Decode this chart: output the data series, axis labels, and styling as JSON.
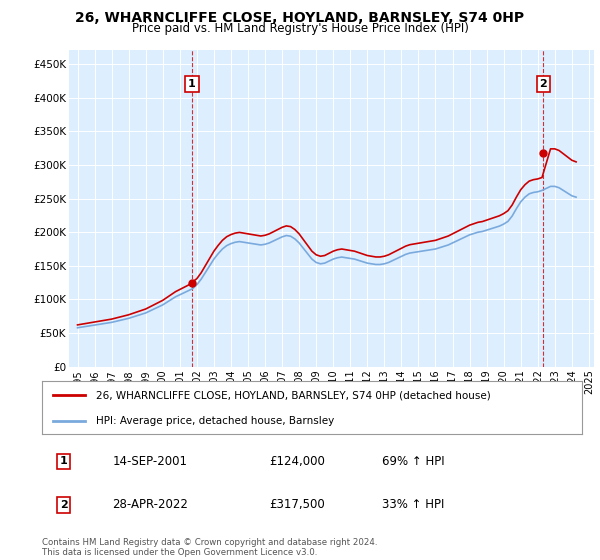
{
  "title": "26, WHARNCLIFFE CLOSE, HOYLAND, BARNSLEY, S74 0HP",
  "subtitle": "Price paid vs. HM Land Registry's House Price Index (HPI)",
  "legend_line1": "26, WHARNCLIFFE CLOSE, HOYLAND, BARNSLEY, S74 0HP (detached house)",
  "legend_line2": "HPI: Average price, detached house, Barnsley",
  "annotation1_date": "14-SEP-2001",
  "annotation1_price": "£124,000",
  "annotation1_hpi": "69% ↑ HPI",
  "annotation2_date": "28-APR-2022",
  "annotation2_price": "£317,500",
  "annotation2_hpi": "33% ↑ HPI",
  "footnote": "Contains HM Land Registry data © Crown copyright and database right 2024.\nThis data is licensed under the Open Government Licence v3.0.",
  "hpi_color": "#7aaadd",
  "price_color": "#cc0000",
  "plot_bg_color": "#ddeeff",
  "ylim": [
    0,
    470000
  ],
  "yticks": [
    0,
    50000,
    100000,
    150000,
    200000,
    250000,
    300000,
    350000,
    400000,
    450000
  ],
  "ytick_labels": [
    "£0",
    "£50K",
    "£100K",
    "£150K",
    "£200K",
    "£250K",
    "£300K",
    "£350K",
    "£400K",
    "£450K"
  ],
  "hpi_x": [
    1995.0,
    1995.25,
    1995.5,
    1995.75,
    1996.0,
    1996.25,
    1996.5,
    1996.75,
    1997.0,
    1997.25,
    1997.5,
    1997.75,
    1998.0,
    1998.25,
    1998.5,
    1998.75,
    1999.0,
    1999.25,
    1999.5,
    1999.75,
    2000.0,
    2000.25,
    2000.5,
    2000.75,
    2001.0,
    2001.25,
    2001.5,
    2001.75,
    2002.0,
    2002.25,
    2002.5,
    2002.75,
    2003.0,
    2003.25,
    2003.5,
    2003.75,
    2004.0,
    2004.25,
    2004.5,
    2004.75,
    2005.0,
    2005.25,
    2005.5,
    2005.75,
    2006.0,
    2006.25,
    2006.5,
    2006.75,
    2007.0,
    2007.25,
    2007.5,
    2007.75,
    2008.0,
    2008.25,
    2008.5,
    2008.75,
    2009.0,
    2009.25,
    2009.5,
    2009.75,
    2010.0,
    2010.25,
    2010.5,
    2010.75,
    2011.0,
    2011.25,
    2011.5,
    2011.75,
    2012.0,
    2012.25,
    2012.5,
    2012.75,
    2013.0,
    2013.25,
    2013.5,
    2013.75,
    2014.0,
    2014.25,
    2014.5,
    2014.75,
    2015.0,
    2015.25,
    2015.5,
    2015.75,
    2016.0,
    2016.25,
    2016.5,
    2016.75,
    2017.0,
    2017.25,
    2017.5,
    2017.75,
    2018.0,
    2018.25,
    2018.5,
    2018.75,
    2019.0,
    2019.25,
    2019.5,
    2019.75,
    2020.0,
    2020.25,
    2020.5,
    2020.75,
    2021.0,
    2021.25,
    2021.5,
    2021.75,
    2022.0,
    2022.25,
    2022.5,
    2022.75,
    2023.0,
    2023.25,
    2023.5,
    2023.75,
    2024.0,
    2024.25
  ],
  "hpi_y": [
    58000,
    59000,
    60000,
    61000,
    62000,
    63000,
    64000,
    65000,
    66000,
    67500,
    69000,
    70500,
    72000,
    74000,
    76000,
    78000,
    80000,
    83000,
    86000,
    89000,
    92000,
    96000,
    100000,
    104000,
    107000,
    110000,
    113000,
    116000,
    122000,
    130000,
    140000,
    150000,
    160000,
    168000,
    175000,
    180000,
    183000,
    185000,
    186000,
    185000,
    184000,
    183000,
    182000,
    181000,
    182000,
    184000,
    187000,
    190000,
    193000,
    195000,
    194000,
    190000,
    184000,
    176000,
    168000,
    160000,
    155000,
    153000,
    154000,
    157000,
    160000,
    162000,
    163000,
    162000,
    161000,
    160000,
    158000,
    156000,
    154000,
    153000,
    152000,
    152000,
    153000,
    155000,
    158000,
    161000,
    164000,
    167000,
    169000,
    170000,
    171000,
    172000,
    173000,
    174000,
    175000,
    177000,
    179000,
    181000,
    184000,
    187000,
    190000,
    193000,
    196000,
    198000,
    200000,
    201000,
    203000,
    205000,
    207000,
    209000,
    212000,
    216000,
    224000,
    235000,
    245000,
    252000,
    257000,
    259000,
    260000,
    262000,
    265000,
    268000,
    268000,
    266000,
    262000,
    258000,
    254000,
    252000
  ],
  "sale1_x": 2001.71,
  "sale1_y": 124000,
  "sale2_x": 2022.32,
  "sale2_y": 317500,
  "xtick_years": [
    1995,
    1996,
    1997,
    1998,
    1999,
    2000,
    2001,
    2002,
    2003,
    2004,
    2005,
    2006,
    2007,
    2008,
    2009,
    2010,
    2011,
    2012,
    2013,
    2014,
    2015,
    2016,
    2017,
    2018,
    2019,
    2020,
    2021,
    2022,
    2023,
    2024,
    2025
  ]
}
